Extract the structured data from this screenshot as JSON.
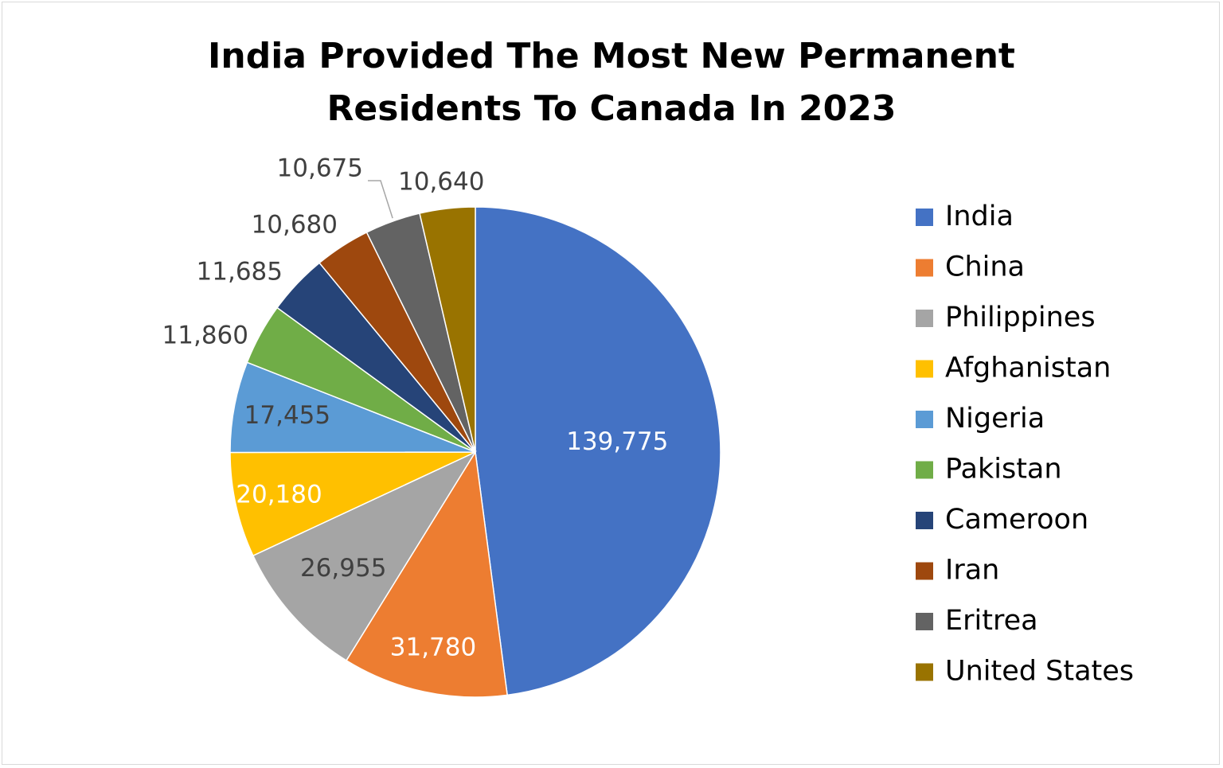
{
  "chart_data": {
    "type": "pie",
    "title": "India Provided The Most New Permanent Residents To Canada In 2023",
    "title_lines": [
      "India Provided The Most New Permanent",
      "Residents To Canada In 2023"
    ],
    "legend_position": "right",
    "slices": [
      {
        "name": "India",
        "value": 139775,
        "label": "139,775",
        "color": "#4472C4"
      },
      {
        "name": "China",
        "value": 31780,
        "label": "31,780",
        "color": "#ED7D31"
      },
      {
        "name": "Philippines",
        "value": 26955,
        "label": "26,955",
        "color": "#A5A5A5"
      },
      {
        "name": "Afghanistan",
        "value": 20180,
        "label": "20,180",
        "color": "#FFC000"
      },
      {
        "name": "Nigeria",
        "value": 17455,
        "label": "17,455",
        "color": "#5B9BD5"
      },
      {
        "name": "Pakistan",
        "value": 11860,
        "label": "11,860",
        "color": "#70AD47"
      },
      {
        "name": "Cameroon",
        "value": 11685,
        "label": "11,685",
        "color": "#264478"
      },
      {
        "name": "Iran",
        "value": 10680,
        "label": "10,680",
        "color": "#9E480E"
      },
      {
        "name": "Eritrea",
        "value": 10675,
        "label": "10,675",
        "color": "#636363"
      },
      {
        "name": "United States",
        "value": 10640,
        "label": "10,640",
        "color": "#997300"
      }
    ]
  }
}
